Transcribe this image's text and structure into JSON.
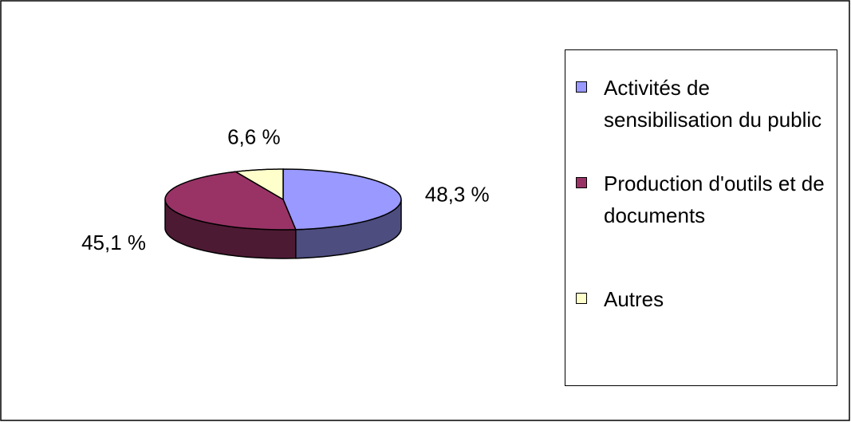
{
  "chart_data": {
    "type": "pie",
    "three_d": true,
    "categories": [
      "Activités de sensibilisation du public",
      "Production d'outils et de documents",
      "Autres"
    ],
    "values": [
      48.3,
      45.1,
      6.6
    ],
    "value_labels": [
      "48,3 %",
      "45,1 %",
      "6,6 %"
    ],
    "colors": [
      "#9999ff",
      "#993366",
      "#ffffcc"
    ],
    "legend": "right"
  }
}
